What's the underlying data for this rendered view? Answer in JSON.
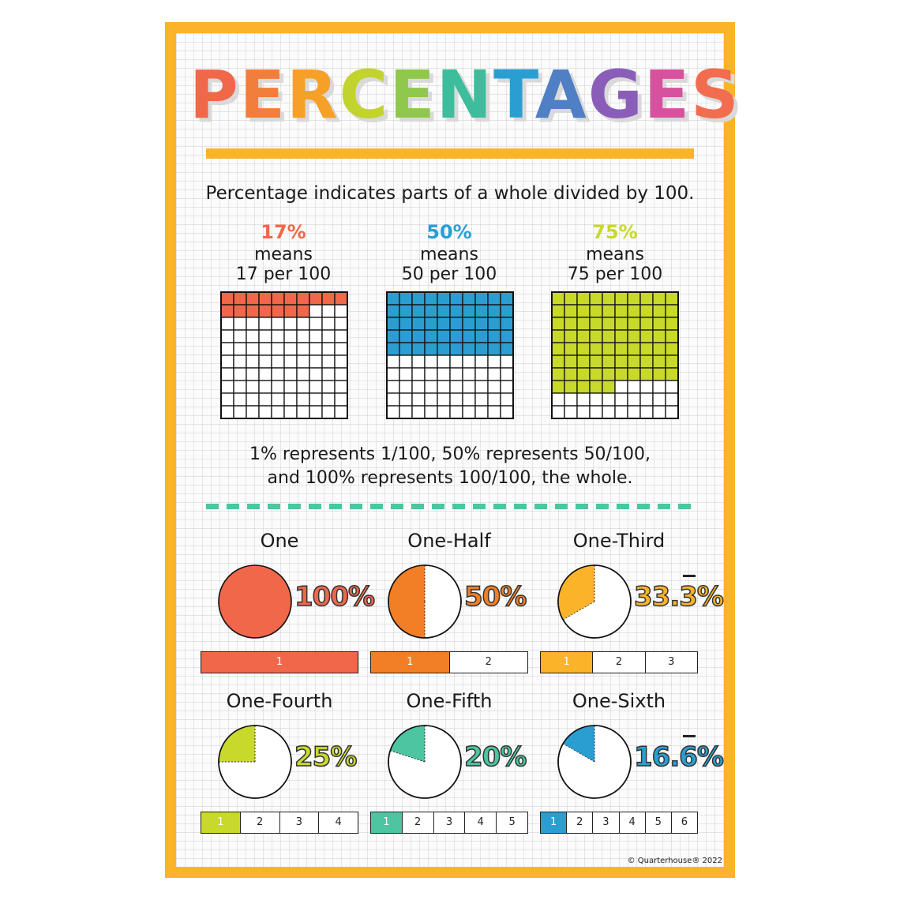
{
  "poster": {
    "title_letters": [
      {
        "ch": "P",
        "color": "#f0674a"
      },
      {
        "ch": "E",
        "color": "#f27e3b"
      },
      {
        "ch": "R",
        "color": "#f7a028"
      },
      {
        "ch": "C",
        "color": "#c3d32d"
      },
      {
        "ch": "E",
        "color": "#8fc84d"
      },
      {
        "ch": "N",
        "color": "#3dbd9c"
      },
      {
        "ch": "T",
        "color": "#2b9ed1"
      },
      {
        "ch": "A",
        "color": "#4f7fc4"
      },
      {
        "ch": "G",
        "color": "#8a5eb8"
      },
      {
        "ch": "E",
        "color": "#d6529f"
      },
      {
        "ch": "S",
        "color": "#f26d4f"
      }
    ],
    "intro": "Percentage indicates parts of a whole divided by 100.",
    "examples": [
      {
        "percent": "17%",
        "means": "means",
        "per": "17 per 100",
        "filled": 17,
        "color": "#f0674a"
      },
      {
        "percent": "50%",
        "means": "means",
        "per": "50 per 100",
        "filled": 50,
        "color": "#2b9ed1"
      },
      {
        "percent": "75%",
        "means": "means",
        "per": "75 per 100",
        "filled": 75,
        "color": "#c8d92b"
      }
    ],
    "represents_line1": "1% represents 1/100, 50% represents 50/100,",
    "represents_line2": "and 100% represents 100/100, the whole.",
    "divider_color": "#4cc5a0",
    "fractions": [
      {
        "label": "One",
        "percent_text": "100%",
        "parts": 1,
        "color": "#f0674a",
        "bar": [
          "1"
        ]
      },
      {
        "label": "One-Half",
        "percent_text": "50%",
        "parts": 2,
        "color": "#f27e26",
        "bar": [
          "1",
          "2"
        ]
      },
      {
        "label": "One-Third",
        "percent_text": "33.3%",
        "parts": 3,
        "color": "#fbb32a",
        "bar": [
          "1",
          "2",
          "3"
        ],
        "overline_digit": "3"
      },
      {
        "label": "One-Fourth",
        "percent_text": "25%",
        "parts": 4,
        "color": "#c8d92b",
        "bar": [
          "1",
          "2",
          "3",
          "4"
        ]
      },
      {
        "label": "One-Fifth",
        "percent_text": "20%",
        "parts": 5,
        "color": "#4cc5a0",
        "bar": [
          "1",
          "2",
          "3",
          "4",
          "5"
        ]
      },
      {
        "label": "One-Sixth",
        "percent_text": "16.6%",
        "parts": 6,
        "color": "#2b9ed1",
        "bar": [
          "1",
          "2",
          "3",
          "4",
          "5",
          "6"
        ],
        "overline_digit": "6"
      }
    ],
    "copyright": "© Quarterhouse® 2022"
  }
}
